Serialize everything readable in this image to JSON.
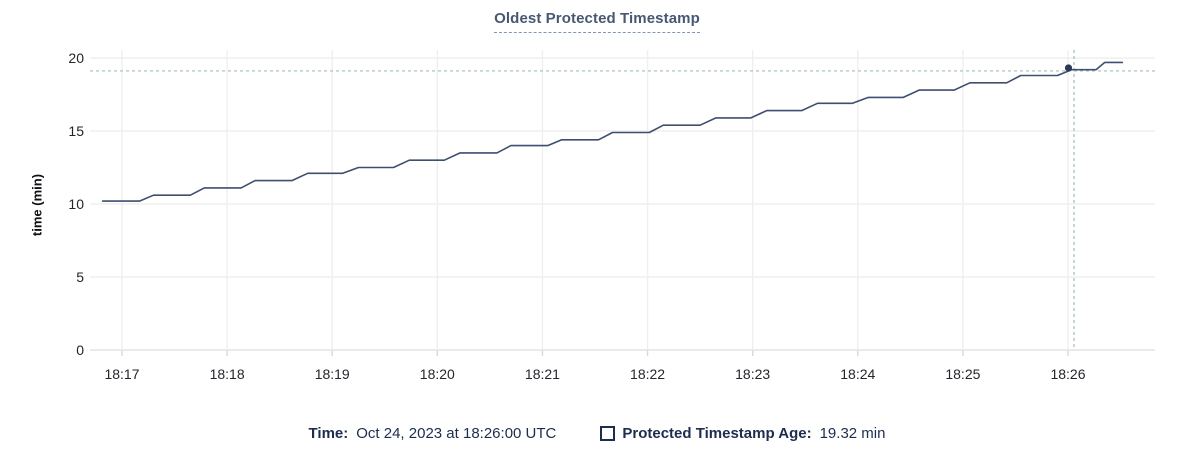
{
  "title": "Oldest Protected Timestamp",
  "y_axis_label": "time (min)",
  "legend": {
    "time_label": "Time:",
    "time_value": "Oct 24, 2023 at 18:26:00 UTC",
    "series_label": "Protected Timestamp Age:",
    "series_value": "19.32 min"
  },
  "colors": {
    "title": "#475872",
    "line": "#3e4f70",
    "dot": "#2a3a57",
    "grid": "#efefef",
    "baseline": "#e4e4e4",
    "tick_mark": "#d8d8d8",
    "crosshair": "#a2bcc1",
    "axis_text": "#24262b",
    "legend_text": "#1d2d4e"
  },
  "chart_data": {
    "type": "line",
    "title": "Oldest Protected Timestamp",
    "xlabel": "",
    "ylabel": "time (min)",
    "ylim": [
      0,
      20
    ],
    "y_ticks": [
      0,
      5,
      10,
      15,
      20
    ],
    "x_ticks": [
      "18:17",
      "18:18",
      "18:19",
      "18:20",
      "18:21",
      "18:22",
      "18:23",
      "18:24",
      "18:25",
      "18:26"
    ],
    "grid": true,
    "legend_position": "bottom",
    "series": [
      {
        "name": "Protected Timestamp Age",
        "unit": "min",
        "points": [
          [
            "18:16:49",
            10.2
          ],
          [
            "18:17:10",
            10.2
          ],
          [
            "18:17:18",
            10.6
          ],
          [
            "18:17:39",
            10.6
          ],
          [
            "18:17:47",
            11.1
          ],
          [
            "18:18:08",
            11.1
          ],
          [
            "18:18:16",
            11.6
          ],
          [
            "18:18:37",
            11.6
          ],
          [
            "18:18:46",
            12.1
          ],
          [
            "18:19:06",
            12.1
          ],
          [
            "18:19:15",
            12.5
          ],
          [
            "18:19:35",
            12.5
          ],
          [
            "18:19:44",
            13.0
          ],
          [
            "18:20:04",
            13.0
          ],
          [
            "18:20:13",
            13.5
          ],
          [
            "18:20:34",
            13.5
          ],
          [
            "18:20:42",
            14.0
          ],
          [
            "18:21:03",
            14.0
          ],
          [
            "18:21:11",
            14.4
          ],
          [
            "18:21:32",
            14.4
          ],
          [
            "18:21:40",
            14.9
          ],
          [
            "18:22:01",
            14.9
          ],
          [
            "18:22:09",
            15.4
          ],
          [
            "18:22:30",
            15.4
          ],
          [
            "18:22:39",
            15.9
          ],
          [
            "18:22:59",
            15.9
          ],
          [
            "18:23:08",
            16.4
          ],
          [
            "18:23:28",
            16.4
          ],
          [
            "18:23:37",
            16.9
          ],
          [
            "18:23:57",
            16.9
          ],
          [
            "18:24:06",
            17.3
          ],
          [
            "18:24:26",
            17.3
          ],
          [
            "18:24:35",
            17.8
          ],
          [
            "18:24:55",
            17.8
          ],
          [
            "18:25:04",
            18.3
          ],
          [
            "18:25:25",
            18.3
          ],
          [
            "18:25:33",
            18.8
          ],
          [
            "18:25:54",
            18.8
          ],
          [
            "18:26:02",
            19.2
          ],
          [
            "18:26:16",
            19.2
          ],
          [
            "18:26:21",
            19.7
          ],
          [
            "18:26:31",
            19.7
          ]
        ]
      }
    ],
    "hover_point": {
      "time": "18:26:00",
      "value": 19.32
    }
  }
}
